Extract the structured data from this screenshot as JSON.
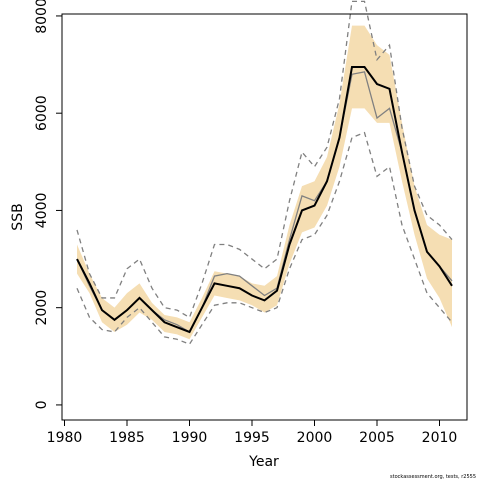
{
  "chart_data": {
    "type": "line",
    "xlabel": "Year",
    "ylabel": "SSB",
    "note": "stockassessment.org, tests, r2555",
    "x": [
      1981,
      1982,
      1983,
      1984,
      1985,
      1986,
      1987,
      1988,
      1989,
      1990,
      1991,
      1992,
      1993,
      1994,
      1995,
      1996,
      1997,
      1998,
      1999,
      2000,
      2001,
      2002,
      2003,
      2004,
      2005,
      2006,
      2007,
      2008,
      2009,
      2010,
      2011
    ],
    "band": {
      "color": "#f5deb3",
      "upper": [
        3300,
        2700,
        2200,
        2000,
        2300,
        2500,
        2100,
        1850,
        1800,
        1700,
        2200,
        2750,
        2700,
        2650,
        2500,
        2450,
        2650,
        3700,
        4500,
        4600,
        5100,
        6200,
        7800,
        7800,
        7400,
        7200,
        5800,
        4500,
        3700,
        3500,
        3400
      ],
      "lower": [
        2700,
        2300,
        1700,
        1500,
        1650,
        1900,
        1750,
        1500,
        1450,
        1350,
        1800,
        2250,
        2200,
        2150,
        2050,
        1900,
        2050,
        2900,
        3550,
        3650,
        4100,
        4900,
        6100,
        6100,
        5800,
        5800,
        4600,
        3500,
        2600,
        2200,
        1600
      ]
    },
    "series": [
      {
        "color": "#808080",
        "dash": true,
        "values": [
          3600,
          2700,
          2200,
          2200,
          2800,
          3000,
          2400,
          2000,
          1950,
          1800,
          2500,
          3300,
          3300,
          3200,
          3000,
          2800,
          3000,
          4200,
          5200,
          4900,
          5300,
          6300,
          8300,
          8300,
          7100,
          7400,
          5700,
          4500,
          3900,
          3700,
          3400
        ]
      },
      {
        "color": "#808080",
        "dash": true,
        "values": [
          2400,
          1800,
          1550,
          1500,
          1800,
          2000,
          1700,
          1400,
          1350,
          1250,
          1650,
          2050,
          2100,
          2100,
          2000,
          1900,
          2000,
          2800,
          3400,
          3500,
          3900,
          4600,
          5500,
          5600,
          4700,
          4900,
          3700,
          3000,
          2300,
          2000,
          1700
        ]
      },
      {
        "color": "#808080",
        "dash": false,
        "values": [
          3000,
          2450,
          1950,
          1750,
          1950,
          2200,
          1950,
          1750,
          1650,
          1500,
          2000,
          2650,
          2700,
          2650,
          2450,
          2250,
          2400,
          3400,
          4300,
          4200,
          4600,
          5500,
          6800,
          6850,
          5900,
          6100,
          5200,
          4000,
          3150,
          2850,
          2550
        ]
      },
      {
        "color": "#000000",
        "dash": false,
        "width": 2,
        "values": [
          3000,
          2500,
          1950,
          1750,
          1950,
          2200,
          1950,
          1700,
          1600,
          1500,
          2000,
          2500,
          2450,
          2400,
          2250,
          2150,
          2350,
          3300,
          4000,
          4100,
          4600,
          5500,
          6950,
          6950,
          6600,
          6500,
          5200,
          4000,
          3150,
          2850,
          2450
        ]
      }
    ],
    "xlim": [
      1979.8,
      2012.2
    ],
    "xticks": [
      1980,
      1985,
      1990,
      1995,
      2000,
      2005,
      2010
    ],
    "ylim": [
      -310,
      8040
    ],
    "yticks": [
      0,
      2000,
      4000,
      6000,
      8000
    ]
  }
}
